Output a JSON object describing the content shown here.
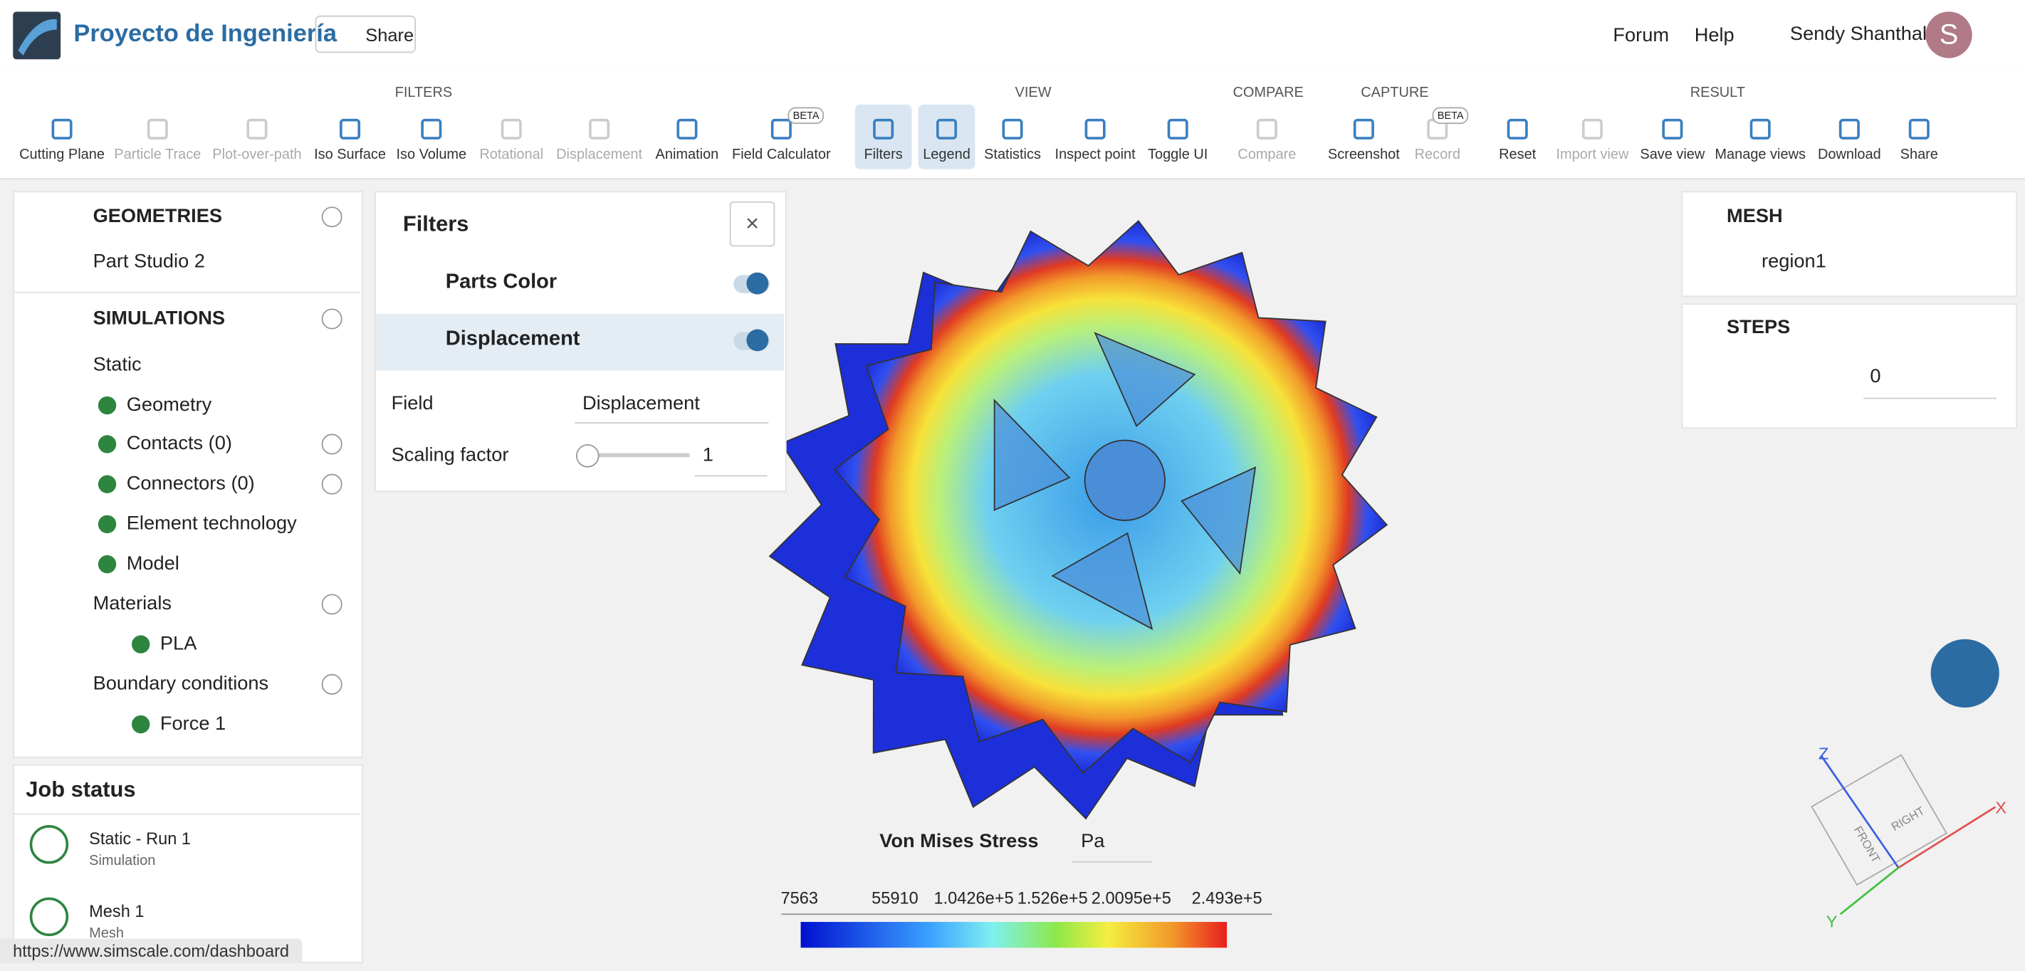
{
  "header": {
    "project": "Proyecto de Ingeniería",
    "share": "Share",
    "links": [
      "Forum",
      "Help"
    ],
    "user": "Sendy Shanthal",
    "avatar": "S"
  },
  "toolbar": {
    "groups": [
      "FILTERS",
      "VIEW",
      "COMPARE",
      "CAPTURE",
      "RESULT"
    ],
    "tools": [
      "Cutting Plane",
      "Particle Trace",
      "Plot-over-path",
      "Iso Surface",
      "Iso Volume",
      "Rotational",
      "Displacement",
      "Animation",
      "Field Calculator",
      "Filters",
      "Legend",
      "Statistics",
      "Inspect point",
      "Toggle UI",
      "Compare",
      "Screenshot",
      "Record",
      "Reset",
      "Import view",
      "Save view",
      "Manage views",
      "Download",
      "Share"
    ],
    "badge": "BETA"
  },
  "tree": {
    "items": [
      "GEOMETRIES",
      "Part Studio 2",
      "SIMULATIONS",
      "Static",
      "Geometry",
      "Contacts (0)",
      "Connectors (0)",
      "Element technology",
      "Model",
      "Materials",
      "PLA",
      "Boundary conditions",
      "Force 1"
    ]
  },
  "jobs": {
    "title": "Job status",
    "items": [
      {
        "name": "Static - Run 1",
        "kind": "Simulation"
      },
      {
        "name": "Mesh 1",
        "kind": "Mesh"
      }
    ]
  },
  "filters": {
    "title": "Filters",
    "items": [
      "Parts Color",
      "Displacement"
    ],
    "field_label": "Field",
    "field_value": "Displacement",
    "scaling_label": "Scaling factor",
    "scaling_value": "1"
  },
  "mesh": {
    "title": "MESH",
    "region": "region1",
    "steps_title": "STEPS",
    "step": "0"
  },
  "legend": {
    "title": "Von Mises Stress",
    "unit": "Pa",
    "ticks": [
      "7563",
      "55910",
      "1.0426e+5",
      "1.526e+5",
      "2.0095e+5",
      "2.493e+5"
    ]
  },
  "axes": {
    "z": "Z",
    "x": "X",
    "y": "Y",
    "right": "RIGHT",
    "front": "FRONT"
  },
  "status": "https://www.simscale.com/dashboard"
}
